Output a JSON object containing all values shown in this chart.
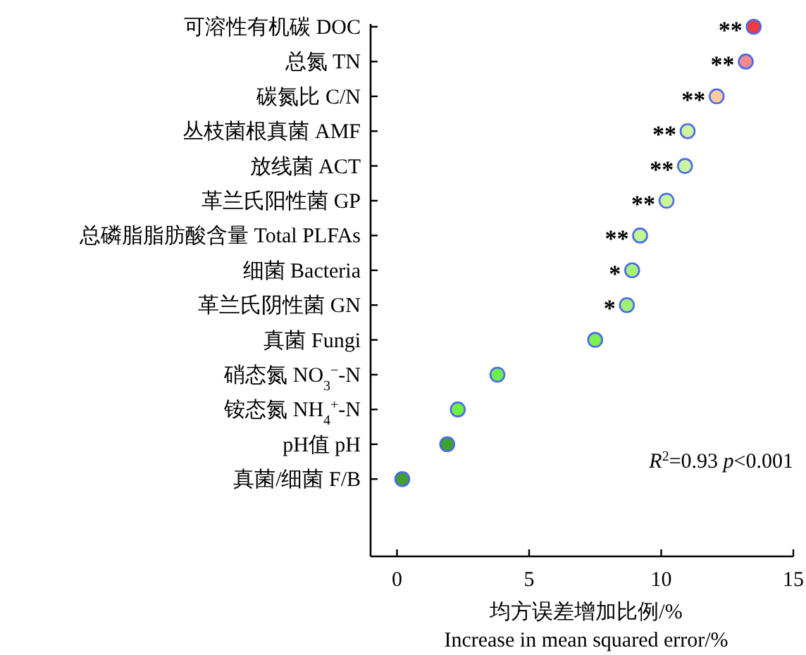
{
  "chart_data": {
    "type": "scatter",
    "orientation": "horizontal",
    "categories": [
      "可溶性有机碳 DOC",
      "总氮 TN",
      "碳氮比 C/N",
      "丛枝菌根真菌 AMF",
      "放线菌 ACT",
      "革兰氏阳性菌 GP",
      "总磷脂脂肪酸含量 Total PLFAs",
      "细菌 Bacteria",
      "革兰氏阴性菌 GN",
      "真菌 Fungi",
      "硝态氮 NO$_{3}$$^{−}$-N",
      "铵态氮 NH$_{4}$$^{+}$-N",
      "pH值 pH",
      "真菌/细菌 F/B"
    ],
    "values": [
      13.5,
      13.2,
      12.1,
      11.0,
      10.9,
      10.2,
      9.2,
      8.9,
      8.7,
      7.5,
      3.8,
      2.3,
      1.9,
      0.2
    ],
    "colors": [
      "#f03c3c",
      "#f08c8c",
      "#fccb9c",
      "#ccf59c",
      "#ccf5a0",
      "#c8f59a",
      "#c0f590",
      "#a8f07c",
      "#a0f078",
      "#7cf050",
      "#6ef04a",
      "#6cf046",
      "#40a030",
      "#40a030"
    ],
    "value_labels": [
      "**",
      "**",
      "**",
      "**",
      "**",
      "**",
      "**",
      "*",
      "*",
      null,
      null,
      null,
      null,
      null
    ],
    "marker": "circle",
    "xlim": [
      -1,
      15
    ],
    "xticks": [
      0,
      5,
      10,
      15
    ],
    "xlabel": "均方误差增加比例/%\nIncrease in mean squared error/%",
    "annotations": [
      "*R*$^{2}$=0.93 *p*<0.001"
    ]
  }
}
